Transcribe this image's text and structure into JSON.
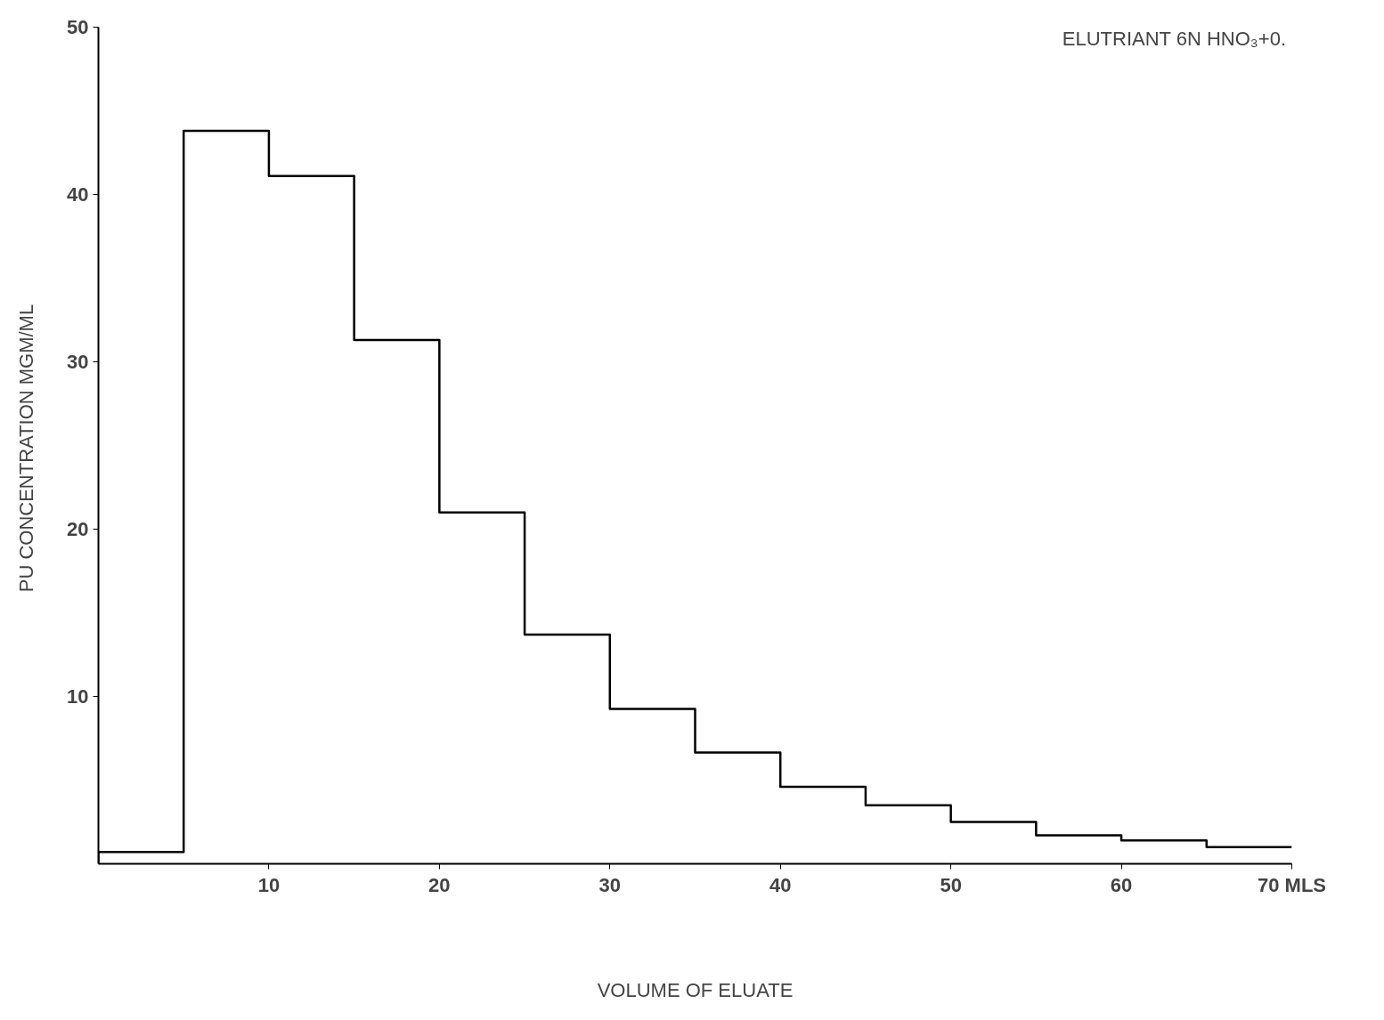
{
  "chart_data": {
    "type": "histogram",
    "xlabel": "VOLUME OF ELUATE",
    "ylabel": "PU CONCENTRATION  MGM/ML",
    "annotations": [
      "ELUTRIANT  6N HNO₃+0."
    ],
    "bins": [
      0,
      5,
      10,
      15,
      20,
      25,
      30,
      35,
      40,
      45,
      50,
      55,
      60,
      65,
      70
    ],
    "values": [
      0.7,
      43.8,
      41.1,
      31.3,
      21.0,
      13.7,
      9.25,
      6.65,
      4.6,
      3.5,
      2.5,
      1.7,
      1.4,
      1.0
    ],
    "color": "#000000",
    "xlim": [
      0,
      70
    ],
    "xticks": [
      10,
      20,
      30,
      40,
      50,
      60,
      {
        "value": 70,
        "label": "70 MLS"
      }
    ],
    "ylim": [
      0,
      50
    ],
    "yticks": [
      10,
      20,
      30,
      40,
      50
    ],
    "grid": false
  }
}
